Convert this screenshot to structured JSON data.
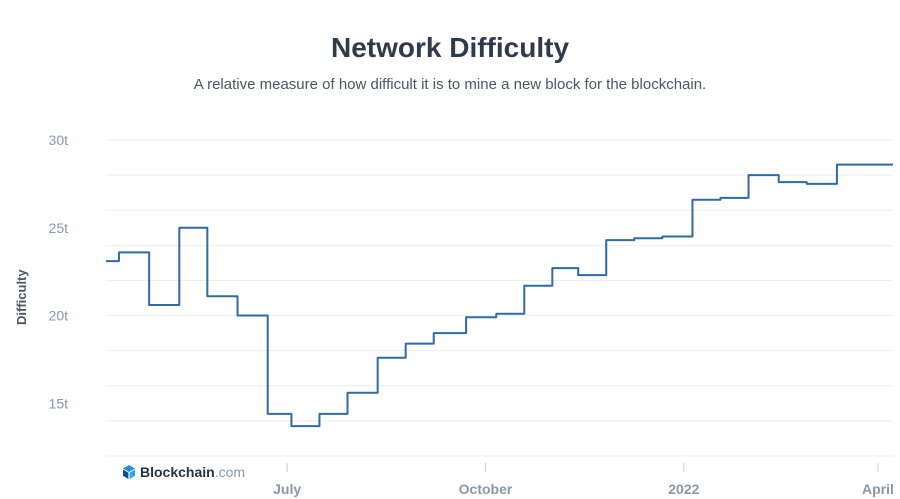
{
  "header": {
    "title": "Network Difficulty",
    "subtitle": "A relative measure of how difficult it is to mine a new block for the blockchain."
  },
  "brand": {
    "name": "Blockchain",
    "suffix": ".com"
  },
  "colors": {
    "line": "#2f6aa6",
    "grid": "#eceef2",
    "title": "#2f3b4c",
    "axis_text": "#8a97a8"
  },
  "chart_data": {
    "type": "line",
    "title": "Network Difficulty",
    "subtitle": "A relative measure of how difficult it is to mine a new block for the blockchain.",
    "xlabel": "",
    "ylabel": "Difficulty",
    "x_axis": {
      "type": "date",
      "min": "2021-04-08",
      "max": "2022-04-08",
      "ticks": [
        {
          "date": "2021-07-01",
          "label": "July"
        },
        {
          "date": "2021-10-01",
          "label": "October"
        },
        {
          "date": "2022-01-01",
          "label": "2022"
        },
        {
          "date": "2022-04-01",
          "label": "April"
        }
      ]
    },
    "y_axis": {
      "min": 12,
      "max": 30,
      "unit": "t",
      "ticks": [
        {
          "value": 15,
          "label": "15t"
        },
        {
          "value": 20,
          "label": "20t"
        },
        {
          "value": 25,
          "label": "25t"
        },
        {
          "value": 30,
          "label": "30t"
        }
      ],
      "gridlines": [
        12,
        14,
        16,
        18,
        20,
        22,
        24,
        26,
        28,
        30
      ]
    },
    "grid": true,
    "legend": "none",
    "series": [
      {
        "x": [
          "2021-04-08",
          "2021-04-14",
          "2021-04-28",
          "2021-05-12",
          "2021-05-25",
          "2021-06-08",
          "2021-06-22",
          "2021-07-03",
          "2021-07-16",
          "2021-07-29",
          "2021-08-12",
          "2021-08-25",
          "2021-09-07",
          "2021-09-22",
          "2021-10-06",
          "2021-10-19",
          "2021-11-01",
          "2021-11-13",
          "2021-11-26",
          "2021-12-09",
          "2021-12-22",
          "2022-01-05",
          "2022-01-18",
          "2022-01-31",
          "2022-02-14",
          "2022-02-27",
          "2022-03-13",
          "2022-03-28",
          "2022-04-08"
        ],
        "y": [
          23.1,
          23.6,
          20.6,
          25.0,
          21.1,
          20.0,
          14.4,
          13.7,
          14.4,
          15.6,
          17.6,
          18.4,
          19.0,
          19.9,
          20.1,
          21.7,
          22.7,
          22.3,
          24.3,
          24.4,
          24.5,
          26.6,
          26.7,
          28.0,
          27.6,
          27.5,
          28.6,
          28.6,
          28.6
        ]
      }
    ]
  }
}
